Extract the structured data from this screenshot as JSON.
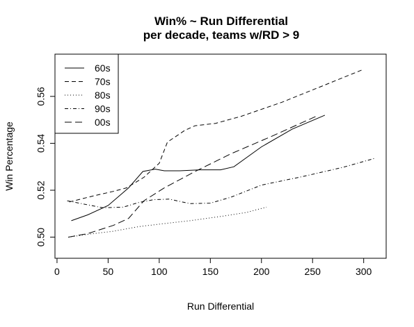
{
  "chart_data": {
    "type": "line",
    "title": "Win% ~ Run Differential",
    "subtitle": "per decade, teams w/RD > 9",
    "xlabel": "Run Differential",
    "ylabel": "Win Percentage",
    "xlim": [
      -2,
      322
    ],
    "ylim": [
      0.491,
      0.578
    ],
    "xticks": [
      0,
      50,
      100,
      150,
      200,
      250,
      300
    ],
    "yticks": [
      0.5,
      0.52,
      0.54,
      0.56
    ],
    "ytick_labels": [
      "0.50",
      "0.52",
      "0.54",
      "0.56"
    ],
    "grid": false,
    "legend_position": "top-left",
    "series": [
      {
        "name": "60s",
        "dash": "",
        "points": [
          [
            14,
            0.507
          ],
          [
            30,
            0.5095
          ],
          [
            50,
            0.5135
          ],
          [
            70,
            0.521
          ],
          [
            84,
            0.528
          ],
          [
            96,
            0.529
          ],
          [
            105,
            0.5283
          ],
          [
            120,
            0.5283
          ],
          [
            140,
            0.5287
          ],
          [
            160,
            0.5287
          ],
          [
            173,
            0.53
          ],
          [
            200,
            0.5385
          ],
          [
            230,
            0.546
          ],
          [
            262,
            0.552
          ]
        ]
      },
      {
        "name": "70s",
        "dash": "6,4",
        "points": [
          [
            12,
            0.515
          ],
          [
            35,
            0.5175
          ],
          [
            55,
            0.5195
          ],
          [
            68,
            0.521
          ],
          [
            85,
            0.5255
          ],
          [
            100,
            0.5315
          ],
          [
            108,
            0.5405
          ],
          [
            125,
            0.5455
          ],
          [
            135,
            0.5475
          ],
          [
            155,
            0.5485
          ],
          [
            180,
            0.5515
          ],
          [
            220,
            0.5575
          ],
          [
            260,
            0.5645
          ],
          [
            298,
            0.5712
          ]
        ]
      },
      {
        "name": "80s",
        "dash": "1,3",
        "points": [
          [
            11,
            0.5
          ],
          [
            30,
            0.5012
          ],
          [
            55,
            0.5025
          ],
          [
            80,
            0.5045
          ],
          [
            105,
            0.5058
          ],
          [
            130,
            0.507
          ],
          [
            160,
            0.5088
          ],
          [
            185,
            0.5105
          ],
          [
            205,
            0.5128
          ]
        ]
      },
      {
        "name": "90s",
        "dash": "5,3,1,3",
        "points": [
          [
            10,
            0.5155
          ],
          [
            30,
            0.5138
          ],
          [
            45,
            0.5125
          ],
          [
            65,
            0.5128
          ],
          [
            80,
            0.5148
          ],
          [
            95,
            0.516
          ],
          [
            110,
            0.5162
          ],
          [
            130,
            0.5143
          ],
          [
            150,
            0.5145
          ],
          [
            170,
            0.517
          ],
          [
            200,
            0.5222
          ],
          [
            240,
            0.5258
          ],
          [
            280,
            0.5298
          ],
          [
            310,
            0.5335
          ]
        ]
      },
      {
        "name": "00s",
        "dash": "10,5",
        "points": [
          [
            11,
            0.5
          ],
          [
            30,
            0.5015
          ],
          [
            55,
            0.505
          ],
          [
            70,
            0.508
          ],
          [
            85,
            0.5155
          ],
          [
            105,
            0.521
          ],
          [
            135,
            0.528
          ],
          [
            170,
            0.5355
          ],
          [
            210,
            0.543
          ],
          [
            255,
            0.5518
          ]
        ]
      }
    ]
  }
}
